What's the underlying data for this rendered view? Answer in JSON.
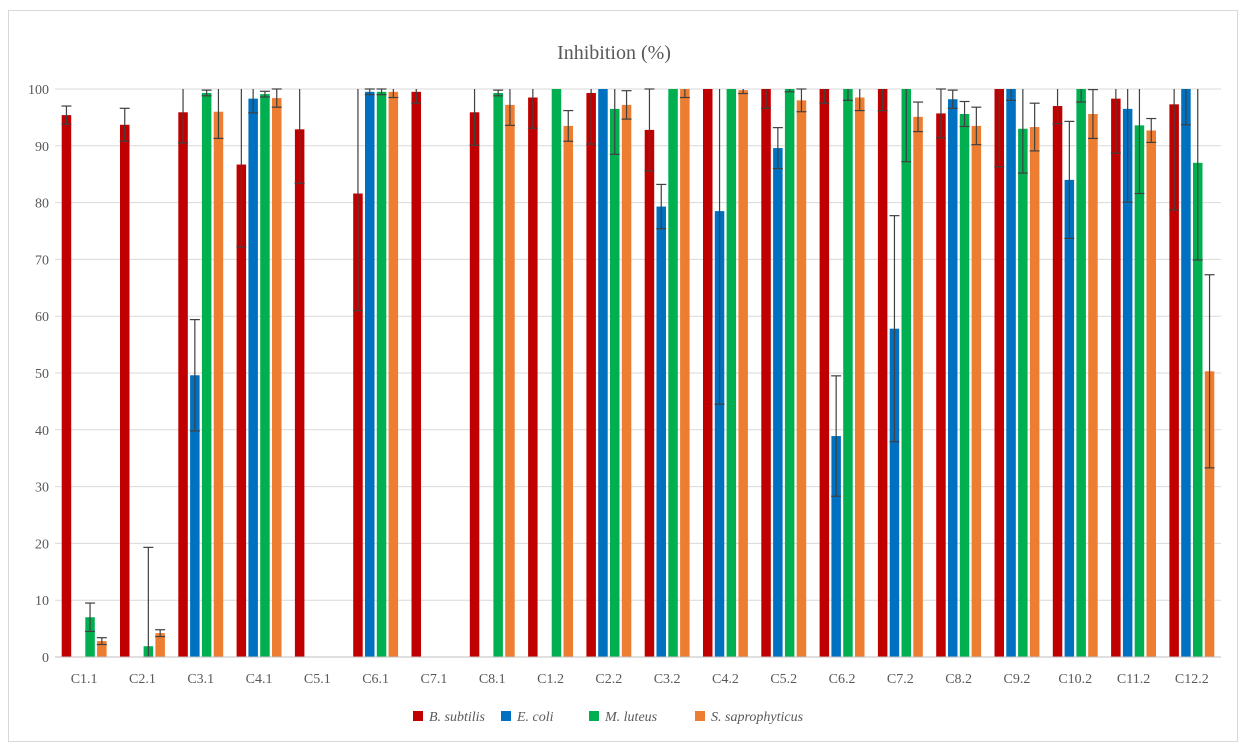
{
  "chart_data": {
    "type": "bar",
    "title": "Inhibition (%)",
    "xlabel": "",
    "ylabel": "",
    "ylim": [
      0,
      100
    ],
    "yticks": [
      0,
      10,
      20,
      30,
      40,
      50,
      60,
      70,
      80,
      90,
      100
    ],
    "grid": true,
    "legend_position": "bottom",
    "categories": [
      "C1.1",
      "C2.1",
      "C3.1",
      "C4.1",
      "C5.1",
      "C6.1",
      "C7.1",
      "C8.1",
      "C1.2",
      "C2.2",
      "C3.2",
      "C4.2",
      "C5.2",
      "C6.2",
      "C7.2",
      "C8.2",
      "C9.2",
      "C10.2",
      "C11.2",
      "C12.2"
    ],
    "series": [
      {
        "name": "B. subtilis",
        "color": "#c00000",
        "values": [
          95.4,
          93.7,
          95.9,
          86.7,
          92.9,
          81.6,
          99.5,
          95.9,
          98.5,
          99.3,
          92.8,
          100,
          100,
          100,
          100,
          95.7,
          100,
          97.0,
          98.3,
          97.3
        ],
        "errors": [
          1.6,
          2.9,
          5.4,
          14.5,
          9.5,
          20.6,
          2.0,
          5.8,
          5.4,
          9.0,
          7.2,
          0,
          3.4,
          2.5,
          3.8,
          4.3,
          13.7,
          3.1,
          9.6,
          18.6
        ]
      },
      {
        "name": "E. coli",
        "color": "#0070c0",
        "values": [
          null,
          null,
          49.6,
          98.3,
          null,
          99.5,
          null,
          null,
          null,
          100,
          79.3,
          78.5,
          89.6,
          38.9,
          57.8,
          98.2,
          100,
          84.0,
          96.5,
          100
        ],
        "errors": [
          0,
          0,
          9.8,
          2.5,
          0,
          0.5,
          0,
          0,
          0,
          0,
          3.9,
          34.0,
          3.6,
          10.6,
          19.9,
          1.6,
          2.0,
          10.3,
          16.4,
          6.3
        ]
      },
      {
        "name": "M. luteus",
        "color": "#00b050",
        "values": [
          7.0,
          1.9,
          99.3,
          99.1,
          null,
          99.5,
          null,
          99.3,
          100,
          96.5,
          100,
          100,
          100,
          100,
          100,
          95.6,
          93.0,
          100,
          93.6,
          87.0
        ],
        "errors": [
          2.5,
          17.4,
          0.5,
          0.5,
          0,
          0.5,
          0,
          0.5,
          0,
          8.0,
          0,
          0,
          0.5,
          2.0,
          12.8,
          2.2,
          7.8,
          2.3,
          12.0,
          17.1
        ]
      },
      {
        "name": "S. saprophyticus",
        "color": "#ed7d31",
        "values": [
          2.8,
          4.2,
          96.0,
          98.4,
          null,
          99.5,
          null,
          97.2,
          93.5,
          97.2,
          100,
          99.8,
          98.0,
          98.5,
          95.1,
          93.5,
          93.3,
          95.6,
          92.7,
          50.3
        ],
        "errors": [
          0.6,
          0.6,
          4.7,
          1.6,
          0,
          1.0,
          0,
          3.6,
          2.7,
          2.5,
          1.5,
          0.6,
          2.0,
          2.3,
          2.6,
          3.3,
          4.2,
          4.3,
          2.1,
          17.0
        ]
      }
    ]
  }
}
